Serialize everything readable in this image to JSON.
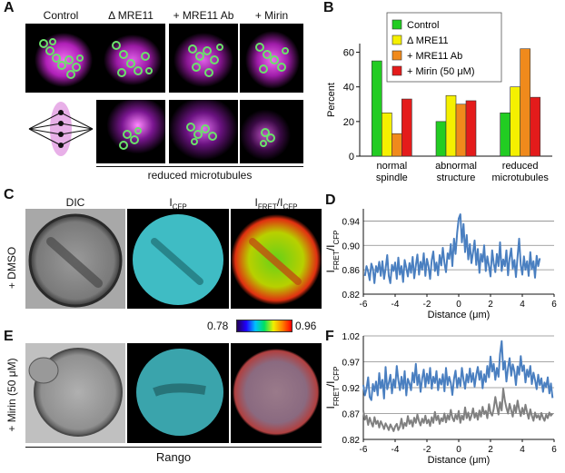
{
  "panel_letters": {
    "a": "A",
    "b": "B",
    "c": "C",
    "d": "D",
    "e": "E",
    "f": "F"
  },
  "panel_a": {
    "columns": [
      "Control",
      "Δ MRE11",
      "+ MRE11 Ab",
      "+ Mirin"
    ],
    "underline_label": "reduced microtubules"
  },
  "panel_c": {
    "col_dic": "DIC",
    "col_cfp_main": "I",
    "col_cfp_sub": "CFP",
    "col_ratio_main": "I",
    "col_ratio_sub1": "FRET",
    "col_ratio_sep": "/I",
    "col_ratio_sub2": "CFP",
    "row_label": "+ DMSO",
    "colorbar_min": "0.78",
    "colorbar_max": "0.96"
  },
  "panel_e": {
    "row_label": "+ Mirin (50 μM)",
    "bottom_label": "Rango"
  },
  "colors": {
    "control": "#22cc22",
    "delta_mre11": "#f5f000",
    "mre11_ab": "#f08a1c",
    "mirin": "#e41b1b",
    "line_blue": "#4a7fc0",
    "line_gray": "#808080"
  },
  "chart_data": [
    {
      "panel": "B",
      "type": "bar",
      "categories": [
        "normal spindle",
        "abnormal structure",
        "reduced microtubules"
      ],
      "category_lines": [
        [
          "normal",
          "spindle"
        ],
        [
          "abnormal",
          "structure"
        ],
        [
          "reduced",
          "microtubules"
        ]
      ],
      "series": [
        {
          "name": "Control",
          "values": [
            55,
            20,
            25
          ]
        },
        {
          "name": "Δ MRE11",
          "values": [
            25,
            35,
            40
          ]
        },
        {
          "name": "+ MRE11 Ab",
          "values": [
            13,
            30,
            62
          ]
        },
        {
          "name": "+ Mirin (50 μM)",
          "values": [
            33,
            32,
            34
          ]
        }
      ],
      "ylabel": "Percent",
      "ylim": [
        0,
        65
      ],
      "yticks": [
        0,
        20,
        40,
        60
      ],
      "legend": "top-left"
    },
    {
      "panel": "D",
      "type": "line",
      "xlabel": "Distance (μm)",
      "ylabel_main": "I",
      "ylabel_sub1": "FRET",
      "ylabel_sep": "/I",
      "ylabel_sub2": "CFP",
      "xlim": [
        -6,
        6
      ],
      "ylim": [
        0.82,
        0.96
      ],
      "xticks": [
        -6,
        -4,
        -2,
        0,
        2,
        4,
        6
      ],
      "yticks": [
        0.82,
        0.86,
        0.9,
        0.94
      ],
      "grid": "horizontal",
      "series": [
        {
          "x_start": -5.9,
          "x_step": 0.1,
          "values": [
            0.85,
            0.866,
            0.857,
            0.843,
            0.87,
            0.862,
            0.838,
            0.866,
            0.856,
            0.873,
            0.85,
            0.874,
            0.845,
            0.862,
            0.884,
            0.85,
            0.838,
            0.868,
            0.858,
            0.872,
            0.845,
            0.88,
            0.852,
            0.866,
            0.84,
            0.876,
            0.863,
            0.849,
            0.871,
            0.855,
            0.881,
            0.846,
            0.867,
            0.885,
            0.852,
            0.873,
            0.86,
            0.887,
            0.85,
            0.878,
            0.866,
            0.845,
            0.876,
            0.89,
            0.858,
            0.872,
            0.851,
            0.884,
            0.867,
            0.896,
            0.871,
            0.856,
            0.887,
            0.878,
            0.902,
            0.866,
            0.911,
            0.886,
            0.921,
            0.944,
            0.951,
            0.905,
            0.935,
            0.889,
            0.917,
            0.877,
            0.902,
            0.871,
            0.889,
            0.908,
            0.868,
            0.894,
            0.855,
            0.886,
            0.873,
            0.9,
            0.858,
            0.882,
            0.866,
            0.849,
            0.892,
            0.871,
            0.856,
            0.886,
            0.866,
            0.905,
            0.858,
            0.877,
            0.866,
            0.892,
            0.851,
            0.879,
            0.895,
            0.862,
            0.876,
            0.848,
            0.882,
            0.911,
            0.868,
            0.852,
            0.882,
            0.86,
            0.874,
            0.85,
            0.889,
            0.861,
            0.874,
            0.847,
            0.883,
            0.866,
            0.879
          ]
        }
      ]
    },
    {
      "panel": "F",
      "type": "line",
      "xlabel": "Distance (μm)",
      "ylabel_main": "I",
      "ylabel_sub1": "FRET",
      "ylabel_sep": "/I",
      "ylabel_sub2": "CFP",
      "xlim": [
        -6,
        6
      ],
      "ylim": [
        0.82,
        1.02
      ],
      "xticks": [
        -6,
        -4,
        -2,
        0,
        2,
        4,
        6
      ],
      "yticks": [
        0.82,
        0.87,
        0.92,
        0.97,
        1.02
      ],
      "grid": "horizontal",
      "series": [
        {
          "color_key": "line_blue",
          "x_start": -6.0,
          "x_step": 0.1,
          "values": [
            0.925,
            0.905,
            0.918,
            0.94,
            0.902,
            0.896,
            0.927,
            0.913,
            0.932,
            0.905,
            0.948,
            0.919,
            0.935,
            0.899,
            0.96,
            0.917,
            0.929,
            0.945,
            0.909,
            0.936,
            0.92,
            0.962,
            0.935,
            0.915,
            0.941,
            0.918,
            0.952,
            0.905,
            0.937,
            0.928,
            0.915,
            0.949,
            0.93,
            0.966,
            0.925,
            0.945,
            0.912,
            0.938,
            0.955,
            0.921,
            0.947,
            0.928,
            0.958,
            0.918,
            0.941,
            0.929,
            0.952,
            0.915,
            0.937,
            0.926,
            0.946,
            0.913,
            0.958,
            0.925,
            0.941,
            0.929,
            0.906,
            0.937,
            0.953,
            0.92,
            0.939,
            0.923,
            0.958,
            0.935,
            0.918,
            0.946,
            0.93,
            0.957,
            0.931,
            0.948,
            0.922,
            0.945,
            0.96,
            0.935,
            0.952,
            0.919,
            0.946,
            0.931,
            0.962,
            0.94,
            0.98,
            0.951,
            0.966,
            0.935,
            0.958,
            0.941,
            0.985,
            1.01,
            0.955,
            0.971,
            0.932,
            0.958,
            0.977,
            0.943,
            0.965,
            0.951,
            0.925,
            0.961,
            0.945,
            0.981,
            0.952,
            0.963,
            0.93,
            0.955,
            0.941,
            0.962,
            0.927,
            0.949,
            0.935,
            0.917,
            0.945,
            0.925,
            0.938,
            0.912,
            0.93,
            0.921,
            0.94,
            0.909,
            0.928,
            0.9
          ]
        },
        {
          "color_key": "line_gray",
          "x_start": -6.0,
          "x_step": 0.1,
          "values": [
            0.875,
            0.858,
            0.866,
            0.848,
            0.862,
            0.852,
            0.845,
            0.863,
            0.85,
            0.856,
            0.843,
            0.855,
            0.848,
            0.84,
            0.851,
            0.845,
            0.838,
            0.849,
            0.843,
            0.836,
            0.845,
            0.85,
            0.838,
            0.845,
            0.86,
            0.841,
            0.852,
            0.846,
            0.865,
            0.85,
            0.857,
            0.845,
            0.862,
            0.852,
            0.868,
            0.855,
            0.847,
            0.86,
            0.852,
            0.866,
            0.851,
            0.858,
            0.846,
            0.863,
            0.852,
            0.873,
            0.857,
            0.866,
            0.85,
            0.861,
            0.855,
            0.87,
            0.853,
            0.867,
            0.858,
            0.877,
            0.862,
            0.855,
            0.868,
            0.859,
            0.875,
            0.852,
            0.866,
            0.858,
            0.882,
            0.861,
            0.872,
            0.857,
            0.866,
            0.88,
            0.862,
            0.871,
            0.858,
            0.876,
            0.864,
            0.883,
            0.869,
            0.875,
            0.861,
            0.888,
            0.872,
            0.866,
            0.879,
            0.902,
            0.885,
            0.868,
            0.892,
            0.876,
            0.918,
            0.895,
            0.881,
            0.87,
            0.889,
            0.876,
            0.864,
            0.886,
            0.872,
            0.895,
            0.878,
            0.865,
            0.881,
            0.869,
            0.887,
            0.872,
            0.86,
            0.878,
            0.866,
            0.856,
            0.872,
            0.862,
            0.867,
            0.858,
            0.871,
            0.862,
            0.856,
            0.868,
            0.861,
            0.872,
            0.866,
            0.87
          ]
        }
      ]
    }
  ]
}
